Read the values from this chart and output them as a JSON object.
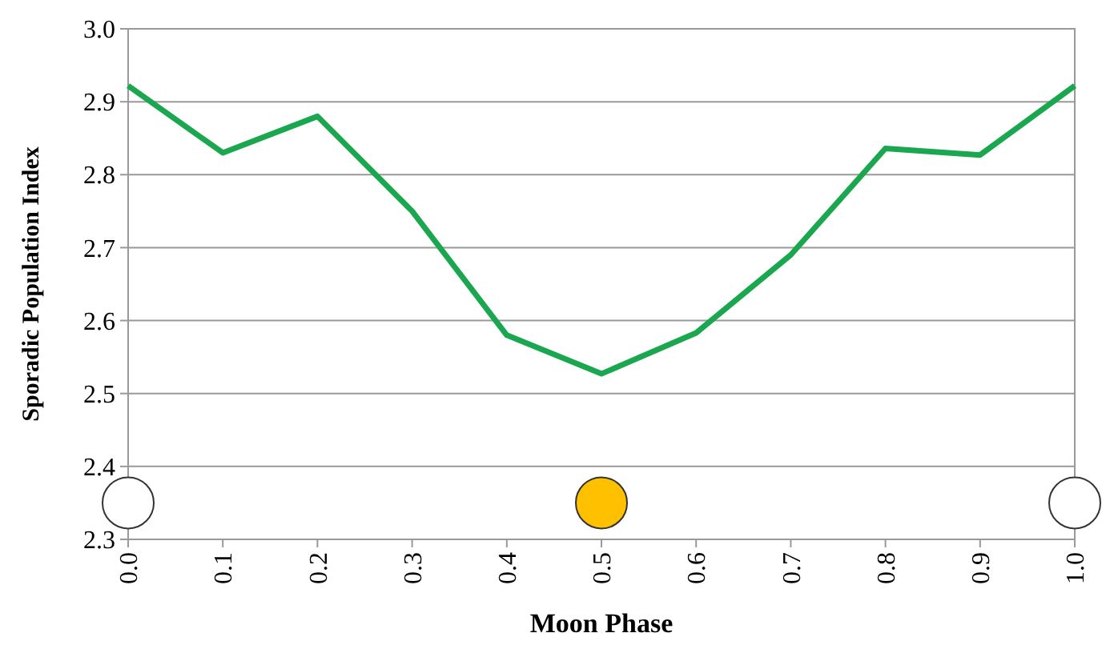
{
  "chart_data": {
    "type": "line",
    "xlabel": "Moon Phase",
    "ylabel": "Sporadic Population Index",
    "x": [
      0,
      0.1,
      0.2,
      0.3,
      0.4,
      0.5,
      0.6,
      0.7,
      0.8,
      0.9,
      1.0
    ],
    "series": [
      {
        "color": "#1aa750",
        "values": [
          2.922,
          2.83,
          2.88,
          2.75,
          2.58,
          2.527,
          2.583,
          2.69,
          2.836,
          2.827,
          2.922
        ]
      }
    ],
    "xlim": [
      0,
      1
    ],
    "xticks": [
      {
        "value": 0,
        "label": "0.0"
      },
      0.1,
      0.2,
      0.3,
      0.4,
      0.5,
      0.6,
      0.7,
      0.8,
      0.9,
      {
        "value": 1,
        "label": "1.0"
      }
    ],
    "ylim": [
      2.3,
      3.0
    ],
    "yticks": [
      2.3,
      2.4,
      2.5,
      2.6,
      2.7,
      2.8,
      2.9,
      {
        "value": 3,
        "label": "3.0"
      }
    ],
    "grid": "y",
    "marker": "none",
    "line_style": "solid"
  }
}
